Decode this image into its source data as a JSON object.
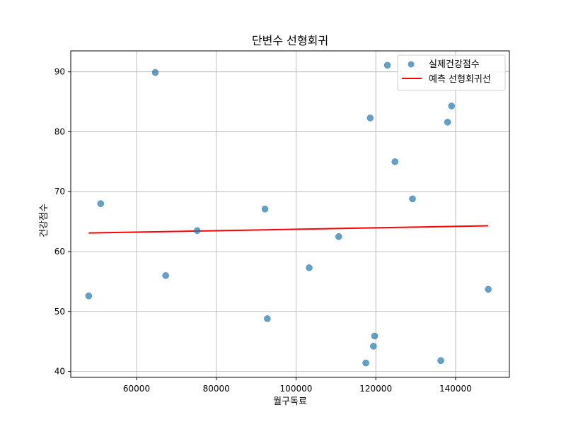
{
  "chart_data": {
    "type": "scatter",
    "title": "단변수 선형회귀",
    "xlabel": "월구독료",
    "ylabel": "건강점수",
    "xlim": [
      43500,
      153500
    ],
    "ylim": [
      39,
      93.5
    ],
    "xticks": [
      60000,
      80000,
      100000,
      120000,
      140000
    ],
    "yticks": [
      40,
      50,
      60,
      70,
      80,
      90
    ],
    "grid": true,
    "legend_position": "top-right",
    "series": [
      {
        "name": "실제건강점수",
        "kind": "scatter",
        "color": "#1f77b4",
        "points": [
          {
            "x": 48000,
            "y": 52.6
          },
          {
            "x": 51000,
            "y": 68.0
          },
          {
            "x": 64700,
            "y": 89.9
          },
          {
            "x": 67300,
            "y": 56.0
          },
          {
            "x": 75200,
            "y": 63.5
          },
          {
            "x": 92200,
            "y": 67.1
          },
          {
            "x": 92800,
            "y": 48.8
          },
          {
            "x": 103300,
            "y": 57.3
          },
          {
            "x": 110700,
            "y": 62.5
          },
          {
            "x": 117500,
            "y": 41.4
          },
          {
            "x": 118600,
            "y": 82.3
          },
          {
            "x": 119400,
            "y": 44.2
          },
          {
            "x": 119700,
            "y": 45.9
          },
          {
            "x": 122900,
            "y": 91.1
          },
          {
            "x": 124800,
            "y": 75.0
          },
          {
            "x": 129200,
            "y": 68.8
          },
          {
            "x": 136300,
            "y": 41.8
          },
          {
            "x": 138000,
            "y": 81.6
          },
          {
            "x": 139000,
            "y": 84.3
          },
          {
            "x": 148200,
            "y": 53.7
          }
        ]
      },
      {
        "name": "예측 선형회귀선",
        "kind": "line",
        "color": "#ff0000",
        "points": [
          {
            "x": 48000,
            "y": 63.1
          },
          {
            "x": 148200,
            "y": 64.3
          }
        ]
      }
    ]
  }
}
